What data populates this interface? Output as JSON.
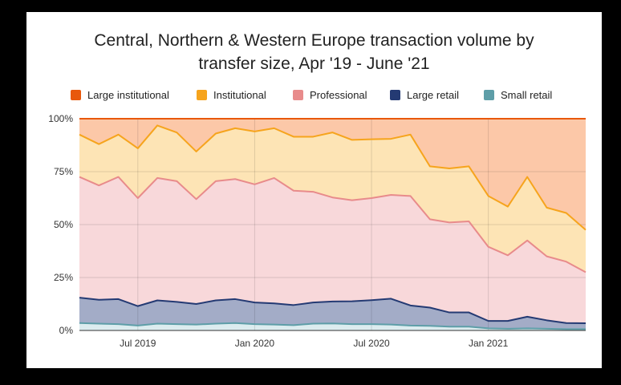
{
  "chart_data": {
    "type": "area",
    "stacking": "percent",
    "title_line1": "Central, Northern & Western Europe transaction volume by",
    "title_line2": "transfer size, Apr '19 - June '21",
    "xlabel": "",
    "ylabel": "",
    "ylim": [
      0,
      100
    ],
    "yticks": [
      "0%",
      "25%",
      "50%",
      "75%",
      "100%"
    ],
    "xticks": [
      {
        "label": "Jul 2019",
        "index": 3
      },
      {
        "label": "Jan 2020",
        "index": 9
      },
      {
        "label": "Jul 2020",
        "index": 15
      },
      {
        "label": "Jan 2021",
        "index": 21
      }
    ],
    "x": [
      "Apr 2019",
      "May 2019",
      "Jun 2019",
      "Jul 2019",
      "Aug 2019",
      "Sep 2019",
      "Oct 2019",
      "Nov 2019",
      "Dec 2019",
      "Jan 2020",
      "Feb 2020",
      "Mar 2020",
      "Apr 2020",
      "May 2020",
      "Jun 2020",
      "Jul 2020",
      "Aug 2020",
      "Sep 2020",
      "Oct 2020",
      "Nov 2020",
      "Dec 2020",
      "Jan 2021",
      "Feb 2021",
      "Mar 2021",
      "Apr 2021",
      "May 2021",
      "Jun 2021"
    ],
    "legend_position": "top",
    "grid": true,
    "series": [
      {
        "name": "Small retail",
        "color": "#5e9ea8",
        "fill": "#dcecef",
        "cumulative": [
          3.5,
          3.2,
          3.0,
          2.3,
          3.2,
          3.0,
          2.8,
          3.2,
          3.5,
          3.0,
          2.8,
          2.5,
          3.2,
          3.3,
          3.0,
          3.0,
          2.8,
          2.3,
          2.2,
          1.8,
          1.8,
          1.0,
          0.8,
          1.0,
          0.8,
          0.6,
          0.6
        ]
      },
      {
        "name": "Large retail",
        "color": "#243a73",
        "fill": "#a3acc7",
        "cumulative": [
          15.5,
          14.5,
          14.8,
          11.5,
          14.2,
          13.5,
          12.5,
          14.2,
          14.8,
          13.2,
          12.8,
          12.0,
          13.2,
          13.7,
          13.8,
          14.3,
          15.0,
          11.8,
          10.8,
          8.5,
          8.5,
          4.5,
          4.5,
          6.5,
          4.8,
          3.5,
          3.4
        ]
      },
      {
        "name": "Professional",
        "color": "#e88b8b",
        "fill": "#f8d8da",
        "cumulative": [
          72.5,
          68.5,
          72.5,
          62.5,
          72.0,
          70.5,
          62.0,
          70.5,
          71.5,
          69.0,
          72.0,
          66.0,
          65.5,
          62.8,
          61.5,
          62.5,
          64.0,
          63.5,
          52.5,
          51.0,
          51.5,
          39.5,
          35.5,
          42.5,
          35.0,
          32.5,
          27.5
        ]
      },
      {
        "name": "Institutional",
        "color": "#f6a41d",
        "fill": "#fde4b5",
        "cumulative": [
          92.5,
          88.0,
          92.5,
          86.0,
          96.8,
          93.5,
          84.5,
          93.0,
          95.5,
          94.0,
          95.5,
          91.5,
          91.5,
          93.5,
          90.0,
          90.3,
          90.5,
          92.5,
          77.5,
          76.5,
          77.5,
          63.5,
          58.5,
          72.5,
          58.0,
          55.5,
          47.5
        ]
      },
      {
        "name": "Large institutional",
        "color": "#e8580c",
        "fill": "#fcc8a8",
        "cumulative": [
          100,
          100,
          100,
          100,
          100,
          100,
          100,
          100,
          100,
          100,
          100,
          100,
          100,
          100,
          100,
          100,
          100,
          100,
          100,
          100,
          100,
          100,
          100,
          100,
          100,
          100,
          100
        ]
      }
    ]
  }
}
